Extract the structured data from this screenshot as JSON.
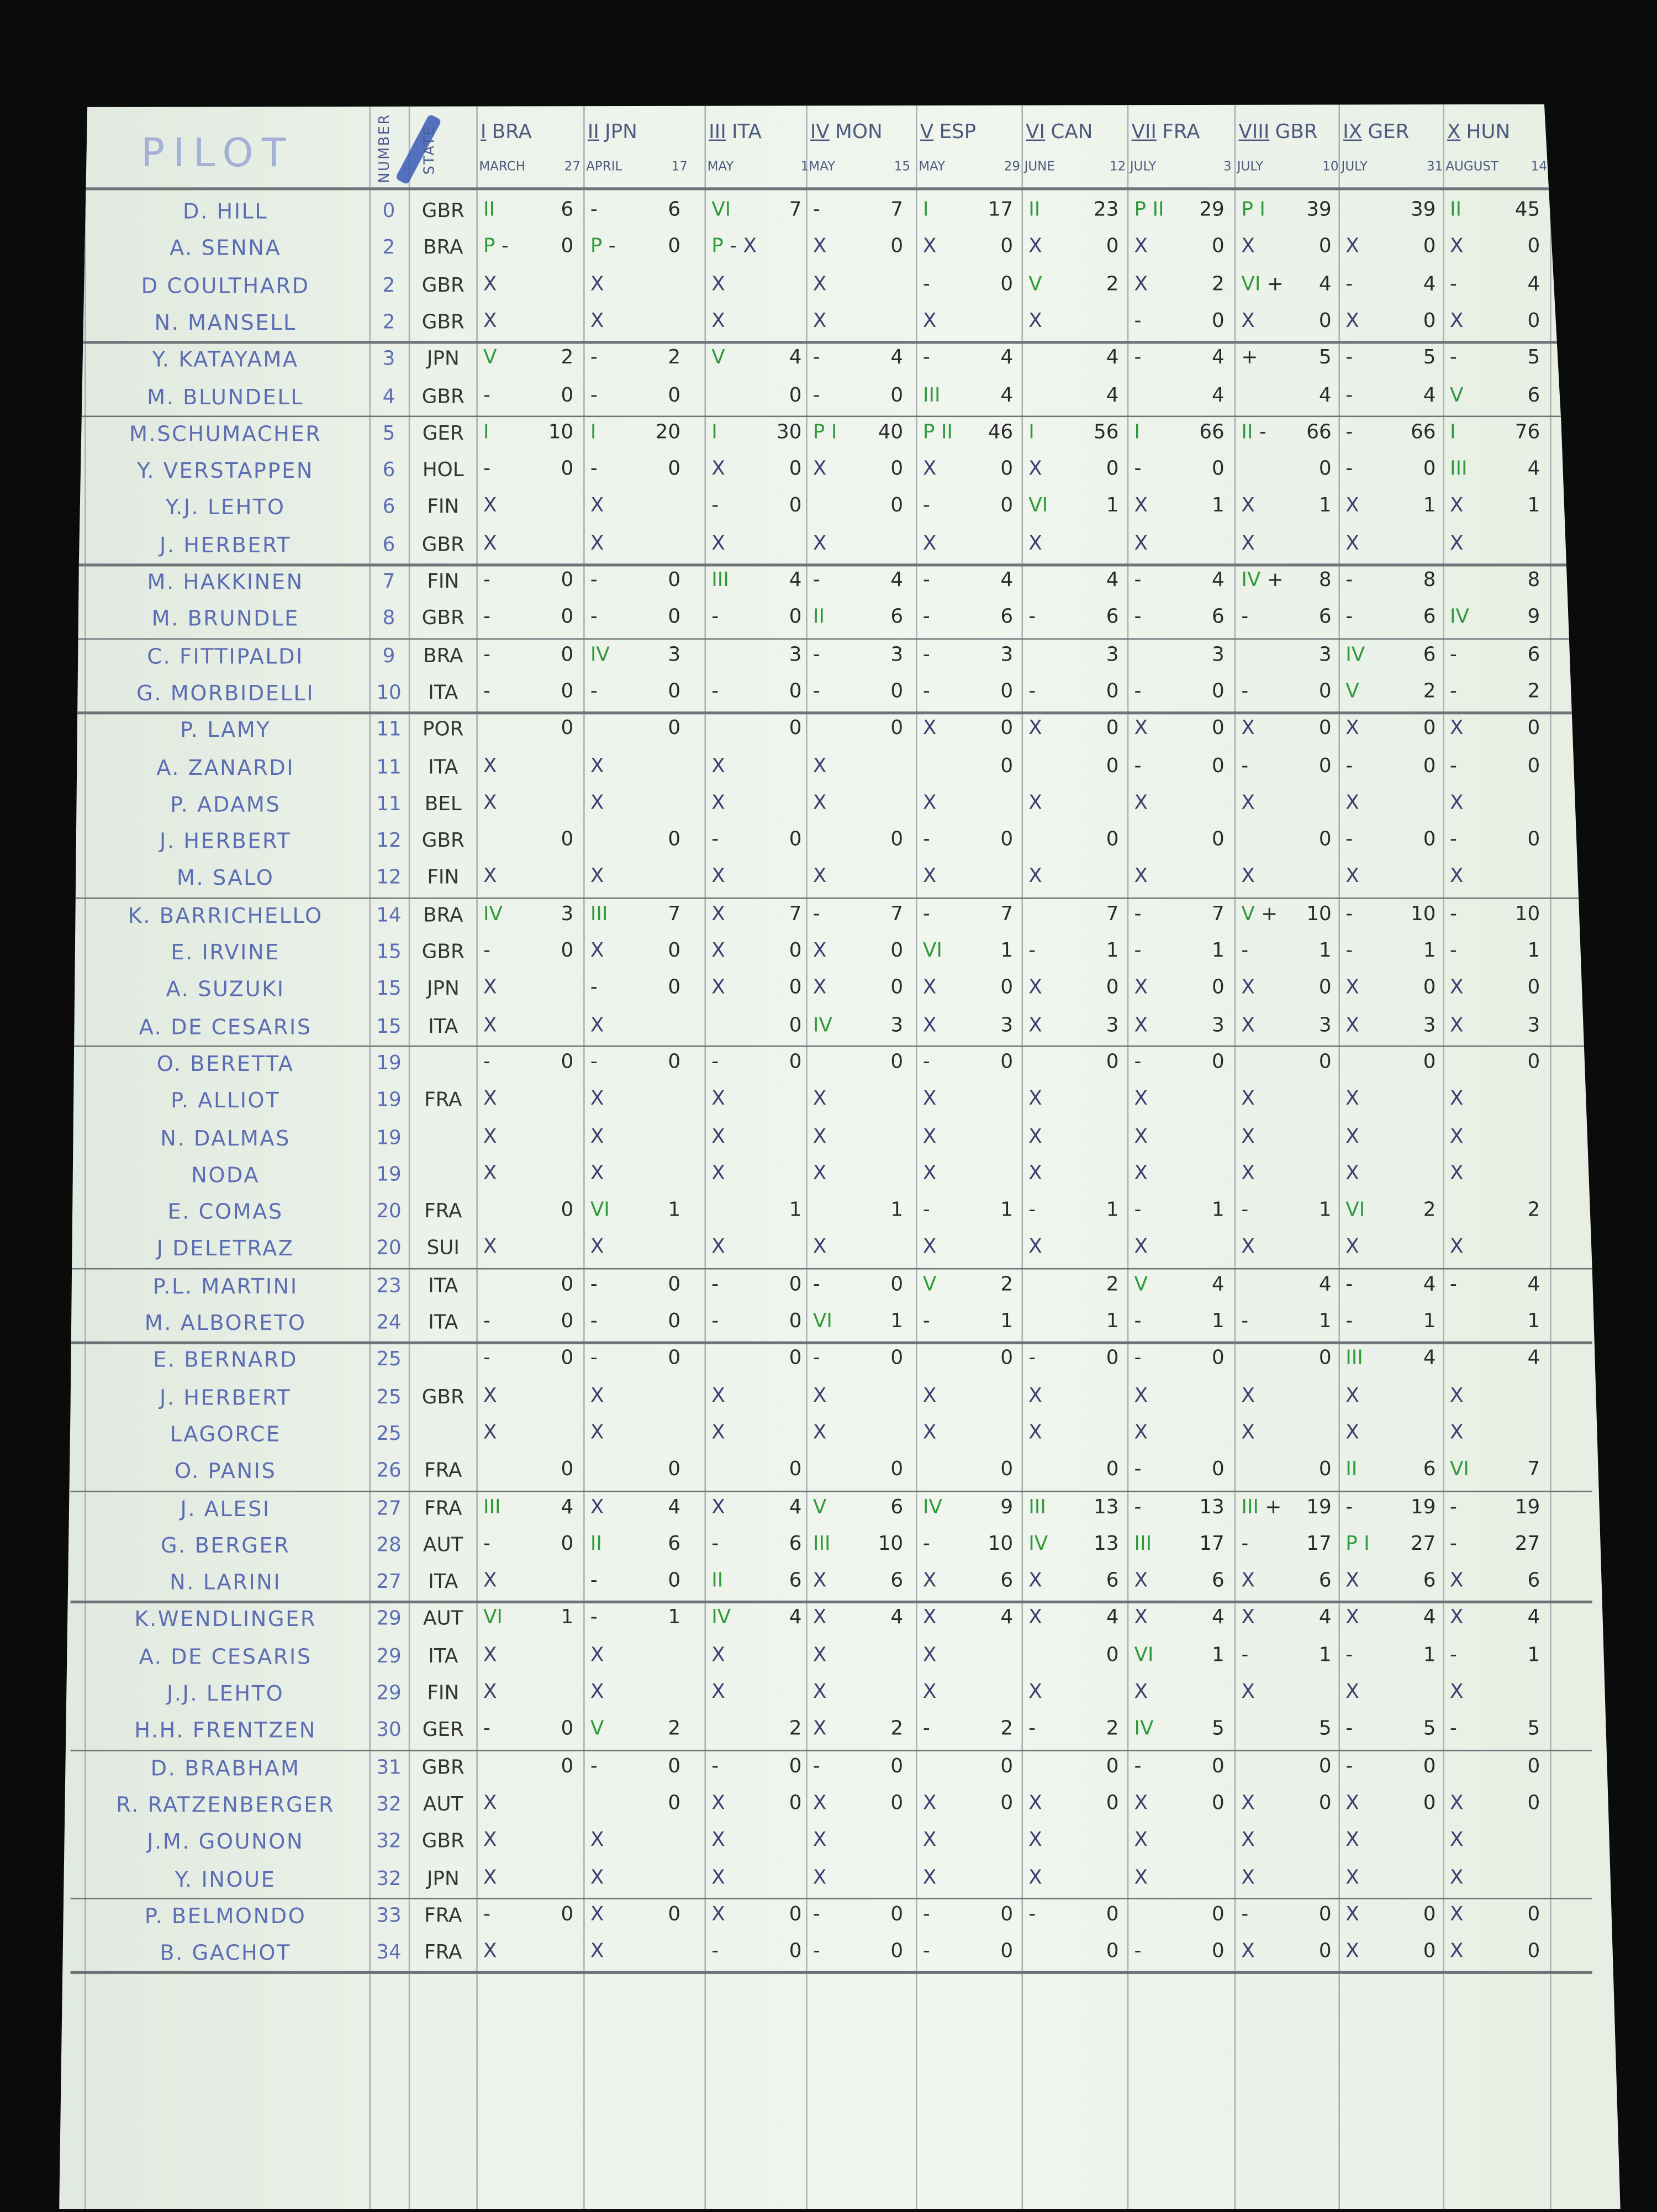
{
  "header": {
    "pilot": "PILOT",
    "number": "NUMBER",
    "state": "STATE",
    "races": [
      {
        "numeral": "I",
        "code": "BRA",
        "month": "MARCH",
        "day": "27"
      },
      {
        "numeral": "II",
        "code": "JPN",
        "month": "APRIL",
        "day": "17"
      },
      {
        "numeral": "III",
        "code": "ITA",
        "month": "MAY",
        "day": "1"
      },
      {
        "numeral": "IV",
        "code": "MON",
        "month": "MAY",
        "day": "15"
      },
      {
        "numeral": "V",
        "code": "ESP",
        "month": "MAY",
        "day": "29"
      },
      {
        "numeral": "VI",
        "code": "CAN",
        "month": "JUNE",
        "day": "12"
      },
      {
        "numeral": "VII",
        "code": "FRA",
        "month": "JULY",
        "day": "3"
      },
      {
        "numeral": "VIII",
        "code": "GBR",
        "month": "JULY",
        "day": "10"
      },
      {
        "numeral": "IX",
        "code": "GER",
        "month": "JULY",
        "day": "31"
      },
      {
        "numeral": "X",
        "code": "HUN",
        "month": "AUGUST",
        "day": "14"
      }
    ]
  },
  "colors": {
    "paper": "#edf3ea",
    "pilot_ink": "#5b6db3",
    "position_ink": "#2f9a3a",
    "points_ink": "#2a2a2e"
  },
  "rows": [
    {
      "pilot": "D. HILL",
      "number": "0",
      "state": "GBR",
      "cells": [
        "II 6",
        "- 6",
        "VI 7",
        "- 7",
        "I 17",
        "II 23",
        "P II 29",
        "P I 39",
        "39",
        "II 45"
      ]
    },
    {
      "pilot": "A. SENNA",
      "number": "2",
      "state": "BRA",
      "cells": [
        "P - 0",
        "P - 0",
        "P - X",
        "X 0",
        "X 0",
        "X 0",
        "X 0",
        "X 0",
        "X 0",
        "X 0"
      ]
    },
    {
      "pilot": "D COULTHARD",
      "number": "2",
      "state": "GBR",
      "cells": [
        "X",
        "X",
        "X",
        "X",
        "- 0",
        "V 2",
        "X 2",
        "VI + 4",
        "- 4",
        "- 4"
      ]
    },
    {
      "pilot": "N. MANSELL",
      "number": "2",
      "state": "GBR",
      "cells": [
        "X",
        "X",
        "X",
        "X",
        "X",
        "X",
        "- 0",
        "X 0",
        "X 0",
        "X 0"
      ]
    },
    {
      "pilot": "Y. KATAYAMA",
      "number": "3",
      "state": "JPN",
      "cells": [
        "V 2",
        "- 2",
        "V 4",
        "- 4",
        "- 4",
        "4",
        "- 4",
        "+ 5",
        "- 5",
        "- 5"
      ]
    },
    {
      "pilot": "M. BLUNDELL",
      "number": "4",
      "state": "GBR",
      "cells": [
        "- 0",
        "- 0",
        "0",
        "- 0",
        "III 4",
        "4",
        "4",
        "4",
        "- 4",
        "V 6"
      ]
    },
    {
      "pilot": "M.SCHUMACHER",
      "number": "5",
      "state": "GER",
      "cells": [
        "I 10",
        "I 20",
        "I 30",
        "P I 40",
        "P II 46",
        "I 56",
        "I 66",
        "II - 66",
        "- 66",
        "I 76"
      ]
    },
    {
      "pilot": "Y. VERSTAPPEN",
      "number": "6",
      "state": "HOL",
      "cells": [
        "- 0",
        "- 0",
        "X 0",
        "X 0",
        "X 0",
        "X 0",
        "- 0",
        "0",
        "- 0",
        "III 4"
      ]
    },
    {
      "pilot": "Y.J. LEHTO",
      "number": "6",
      "state": "FIN",
      "cells": [
        "X",
        "X",
        "- 0",
        "0",
        "- 0",
        "VI 1",
        "X 1",
        "X 1",
        "X 1",
        "X 1"
      ]
    },
    {
      "pilot": "J. HERBERT",
      "number": "6",
      "state": "GBR",
      "cells": [
        "X",
        "X",
        "X",
        "X",
        "X",
        "X",
        "X",
        "X",
        "X",
        "X"
      ]
    },
    {
      "pilot": "M. HAKKINEN",
      "number": "7",
      "state": "FIN",
      "cells": [
        "- 0",
        "- 0",
        "III 4",
        "- 4",
        "- 4",
        "4",
        "- 4",
        "IV + 8",
        "- 8",
        "8"
      ]
    },
    {
      "pilot": "M. BRUNDLE",
      "number": "8",
      "state": "GBR",
      "cells": [
        "- 0",
        "- 0",
        "- 0",
        "II 6",
        "- 6",
        "- 6",
        "- 6",
        "- 6",
        "- 6",
        "IV 9"
      ]
    },
    {
      "pilot": "C. FITTIPALDI",
      "number": "9",
      "state": "BRA",
      "cells": [
        "- 0",
        "IV 3",
        "3",
        "- 3",
        "- 3",
        "3",
        "3",
        "3",
        "IV 6",
        "- 6"
      ]
    },
    {
      "pilot": "G. MORBIDELLI",
      "number": "10",
      "state": "ITA",
      "cells": [
        "- 0",
        "- 0",
        "- 0",
        "- 0",
        "- 0",
        "- 0",
        "- 0",
        "- 0",
        "V 2",
        "- 2"
      ]
    },
    {
      "pilot": "P. LAMY",
      "number": "11",
      "state": "POR",
      "cells": [
        "0",
        "0",
        "0",
        "0",
        "X 0",
        "X 0",
        "X 0",
        "X 0",
        "X 0",
        "X 0"
      ]
    },
    {
      "pilot": "A. ZANARDI",
      "number": "11",
      "state": "ITA",
      "cells": [
        "X",
        "X",
        "X",
        "X",
        "0",
        "0",
        "- 0",
        "- 0",
        "- 0",
        "- 0"
      ]
    },
    {
      "pilot": "P. ADAMS",
      "number": "11",
      "state": "BEL",
      "cells": [
        "X",
        "X",
        "X",
        "X",
        "X",
        "X",
        "X",
        "X",
        "X",
        "X"
      ]
    },
    {
      "pilot": "J. HERBERT",
      "number": "12",
      "state": "GBR",
      "cells": [
        "0",
        "0",
        "- 0",
        "0",
        "- 0",
        "0",
        "0",
        "0",
        "- 0",
        "- 0"
      ]
    },
    {
      "pilot": "M. SALO",
      "number": "12",
      "state": "FIN",
      "cells": [
        "X",
        "X",
        "X",
        "X",
        "X",
        "X",
        "X",
        "X",
        "X",
        "X"
      ]
    },
    {
      "pilot": "K. BARRICHELLO",
      "number": "14",
      "state": "BRA",
      "cells": [
        "IV 3",
        "III 7",
        "X 7",
        "- 7",
        "- 7",
        "7",
        "- 7",
        "V + 10",
        "- 10",
        "- 10"
      ]
    },
    {
      "pilot": "E. IRVINE",
      "number": "15",
      "state": "GBR",
      "cells": [
        "- 0",
        "X 0",
        "X 0",
        "X 0",
        "VI 1",
        "- 1",
        "- 1",
        "- 1",
        "- 1",
        "- 1"
      ]
    },
    {
      "pilot": "A. SUZUKI",
      "number": "15",
      "state": "JPN",
      "cells": [
        "X",
        "- 0",
        "X 0",
        "X 0",
        "X 0",
        "X 0",
        "X 0",
        "X 0",
        "X 0",
        "X 0"
      ]
    },
    {
      "pilot": "A. DE CESARIS",
      "number": "15",
      "state": "ITA",
      "cells": [
        "X",
        "X",
        "0",
        "IV 3",
        "X 3",
        "X 3",
        "X 3",
        "X 3",
        "X 3",
        "X 3"
      ]
    },
    {
      "pilot": "O. BERETTA",
      "number": "19",
      "state": "",
      "cells": [
        "- 0",
        "- 0",
        "- 0",
        "0",
        "- 0",
        "0",
        "- 0",
        "0",
        "0",
        "0"
      ]
    },
    {
      "pilot": "P. ALLIOT",
      "number": "19",
      "state": "FRA",
      "cells": [
        "X",
        "X",
        "X",
        "X",
        "X",
        "X",
        "X",
        "X",
        "X",
        "X"
      ]
    },
    {
      "pilot": "N. DALMAS",
      "number": "19",
      "state": "",
      "cells": [
        "X",
        "X",
        "X",
        "X",
        "X",
        "X",
        "X",
        "X",
        "X",
        "X"
      ]
    },
    {
      "pilot": "NODA",
      "number": "19",
      "state": "",
      "cells": [
        "X",
        "X",
        "X",
        "X",
        "X",
        "X",
        "X",
        "X",
        "X",
        "X"
      ]
    },
    {
      "pilot": "E. COMAS",
      "number": "20",
      "state": "FRA",
      "cells": [
        "0",
        "VI 1",
        "1",
        "1",
        "- 1",
        "- 1",
        "- 1",
        "- 1",
        "VI 2",
        "2"
      ]
    },
    {
      "pilot": "J DELETRAZ",
      "number": "20",
      "state": "SUI",
      "cells": [
        "X",
        "X",
        "X",
        "X",
        "X",
        "X",
        "X",
        "X",
        "X",
        "X"
      ]
    },
    {
      "pilot": "P.L. MARTINI",
      "number": "23",
      "state": "ITA",
      "cells": [
        "0",
        "- 0",
        "- 0",
        "- 0",
        "V 2",
        "2",
        "V 4",
        "4",
        "- 4",
        "- 4"
      ]
    },
    {
      "pilot": "M. ALBORETO",
      "number": "24",
      "state": "ITA",
      "cells": [
        "- 0",
        "- 0",
        "- 0",
        "VI 1",
        "- 1",
        "1",
        "- 1",
        "- 1",
        "- 1",
        "1"
      ]
    },
    {
      "pilot": "E. BERNARD",
      "number": "25",
      "state": "",
      "cells": [
        "- 0",
        "- 0",
        "0",
        "- 0",
        "0",
        "- 0",
        "- 0",
        "0",
        "III 4",
        "4"
      ]
    },
    {
      "pilot": "J. HERBERT",
      "number": "25",
      "state": "GBR",
      "cells": [
        "X",
        "X",
        "X",
        "X",
        "X",
        "X",
        "X",
        "X",
        "X",
        "X"
      ]
    },
    {
      "pilot": "LAGORCE",
      "number": "25",
      "state": "",
      "cells": [
        "X",
        "X",
        "X",
        "X",
        "X",
        "X",
        "X",
        "X",
        "X",
        "X"
      ]
    },
    {
      "pilot": "O. PANIS",
      "number": "26",
      "state": "FRA",
      "cells": [
        "0",
        "0",
        "0",
        "0",
        "0",
        "0",
        "- 0",
        "0",
        "II 6",
        "VI 7"
      ]
    },
    {
      "pilot": "J. ALESI",
      "number": "27",
      "state": "FRA",
      "cells": [
        "III 4",
        "X 4",
        "X 4",
        "V 6",
        "IV 9",
        "III 13",
        "- 13",
        "III + 19",
        "- 19",
        "- 19"
      ]
    },
    {
      "pilot": "G. BERGER",
      "number": "28",
      "state": "AUT",
      "cells": [
        "- 0",
        "II 6",
        "- 6",
        "III 10",
        "- 10",
        "IV 13",
        "III 17",
        "- 17",
        "P I 27",
        "- 27"
      ]
    },
    {
      "pilot": "N. LARINI",
      "number": "27",
      "state": "ITA",
      "cells": [
        "X",
        "- 0",
        "II 6",
        "X 6",
        "X 6",
        "X 6",
        "X 6",
        "X 6",
        "X 6",
        "X 6"
      ]
    },
    {
      "pilot": "K.WENDLINGER",
      "number": "29",
      "state": "AUT",
      "cells": [
        "VI 1",
        "- 1",
        "IV 4",
        "X 4",
        "X 4",
        "X 4",
        "X 4",
        "X 4",
        "X 4",
        "X 4"
      ]
    },
    {
      "pilot": "A. DE CESARIS",
      "number": "29",
      "state": "ITA",
      "cells": [
        "X",
        "X",
        "X",
        "X",
        "X",
        "0",
        "VI 1",
        "- 1",
        "- 1",
        "- 1"
      ]
    },
    {
      "pilot": "J.J. LEHTO",
      "number": "29",
      "state": "FIN",
      "cells": [
        "X",
        "X",
        "X",
        "X",
        "X",
        "X",
        "X",
        "X",
        "X",
        "X"
      ]
    },
    {
      "pilot": "H.H. FRENTZEN",
      "number": "30",
      "state": "GER",
      "cells": [
        "- 0",
        "V 2",
        "2",
        "X 2",
        "- 2",
        "- 2",
        "IV 5",
        "5",
        "- 5",
        "- 5"
      ]
    },
    {
      "pilot": "D. BRABHAM",
      "number": "31",
      "state": "GBR",
      "cells": [
        "0",
        "- 0",
        "- 0",
        "- 0",
        "0",
        "0",
        "- 0",
        "0",
        "- 0",
        "0"
      ]
    },
    {
      "pilot": "R. RATZENBERGER",
      "number": "32",
      "state": "AUT",
      "cells": [
        "X",
        "0",
        "X 0",
        "X 0",
        "X 0",
        "X 0",
        "X 0",
        "X 0",
        "X 0",
        "X 0"
      ]
    },
    {
      "pilot": "J.M. GOUNON",
      "number": "32",
      "state": "GBR",
      "cells": [
        "X",
        "X",
        "X",
        "X",
        "X",
        "X",
        "X",
        "X",
        "X",
        "X"
      ]
    },
    {
      "pilot": "Y. INOUE",
      "number": "32",
      "state": "JPN",
      "cells": [
        "X",
        "X",
        "X",
        "X",
        "X",
        "X",
        "X",
        "X",
        "X",
        "X"
      ]
    },
    {
      "pilot": "P. BELMONDO",
      "number": "33",
      "state": "FRA",
      "cells": [
        "- 0",
        "X 0",
        "X 0",
        "- 0",
        "- 0",
        "- 0",
        "0",
        "- 0",
        "X 0",
        "X 0"
      ]
    },
    {
      "pilot": "B. GACHOT",
      "number": "34",
      "state": "FRA",
      "cells": [
        "X",
        "X",
        "- 0",
        "- 0",
        "- 0",
        "0",
        "- 0",
        "X 0",
        "X 0",
        "X 0"
      ]
    }
  ]
}
